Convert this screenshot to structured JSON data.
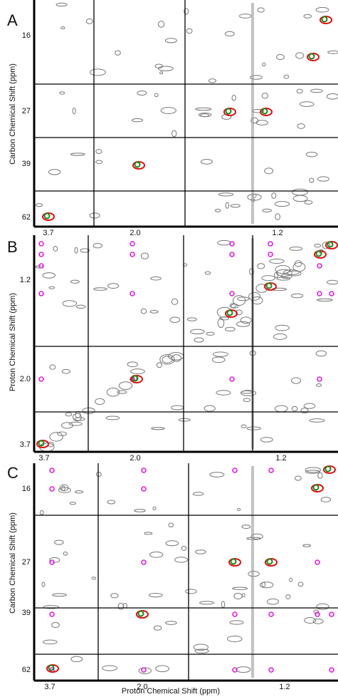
{
  "panels": [
    {
      "label": "A",
      "y_axis_title": "Carbon Chemical Shift (ppm)",
      "y_ticks": [
        "16",
        "27",
        "39",
        "62"
      ],
      "x_ticks": [
        "3.7",
        "2.0",
        "1.2"
      ]
    },
    {
      "label": "B",
      "y_axis_title": "Proton Chemical Shift (ppm)",
      "y_ticks": [
        "1.2",
        "2.0",
        "3.7"
      ],
      "x_ticks": [
        "3.7",
        "2.0",
        "1.2"
      ]
    },
    {
      "label": "C",
      "y_axis_title": "Carbon Chemical Shift (ppm)",
      "y_ticks": [
        "16",
        "27",
        "39",
        "62"
      ],
      "x_ticks": [
        "3.7",
        "2.0",
        "1.2"
      ]
    }
  ],
  "x_axis_title": "Proton Chemical Shift (ppm)"
}
